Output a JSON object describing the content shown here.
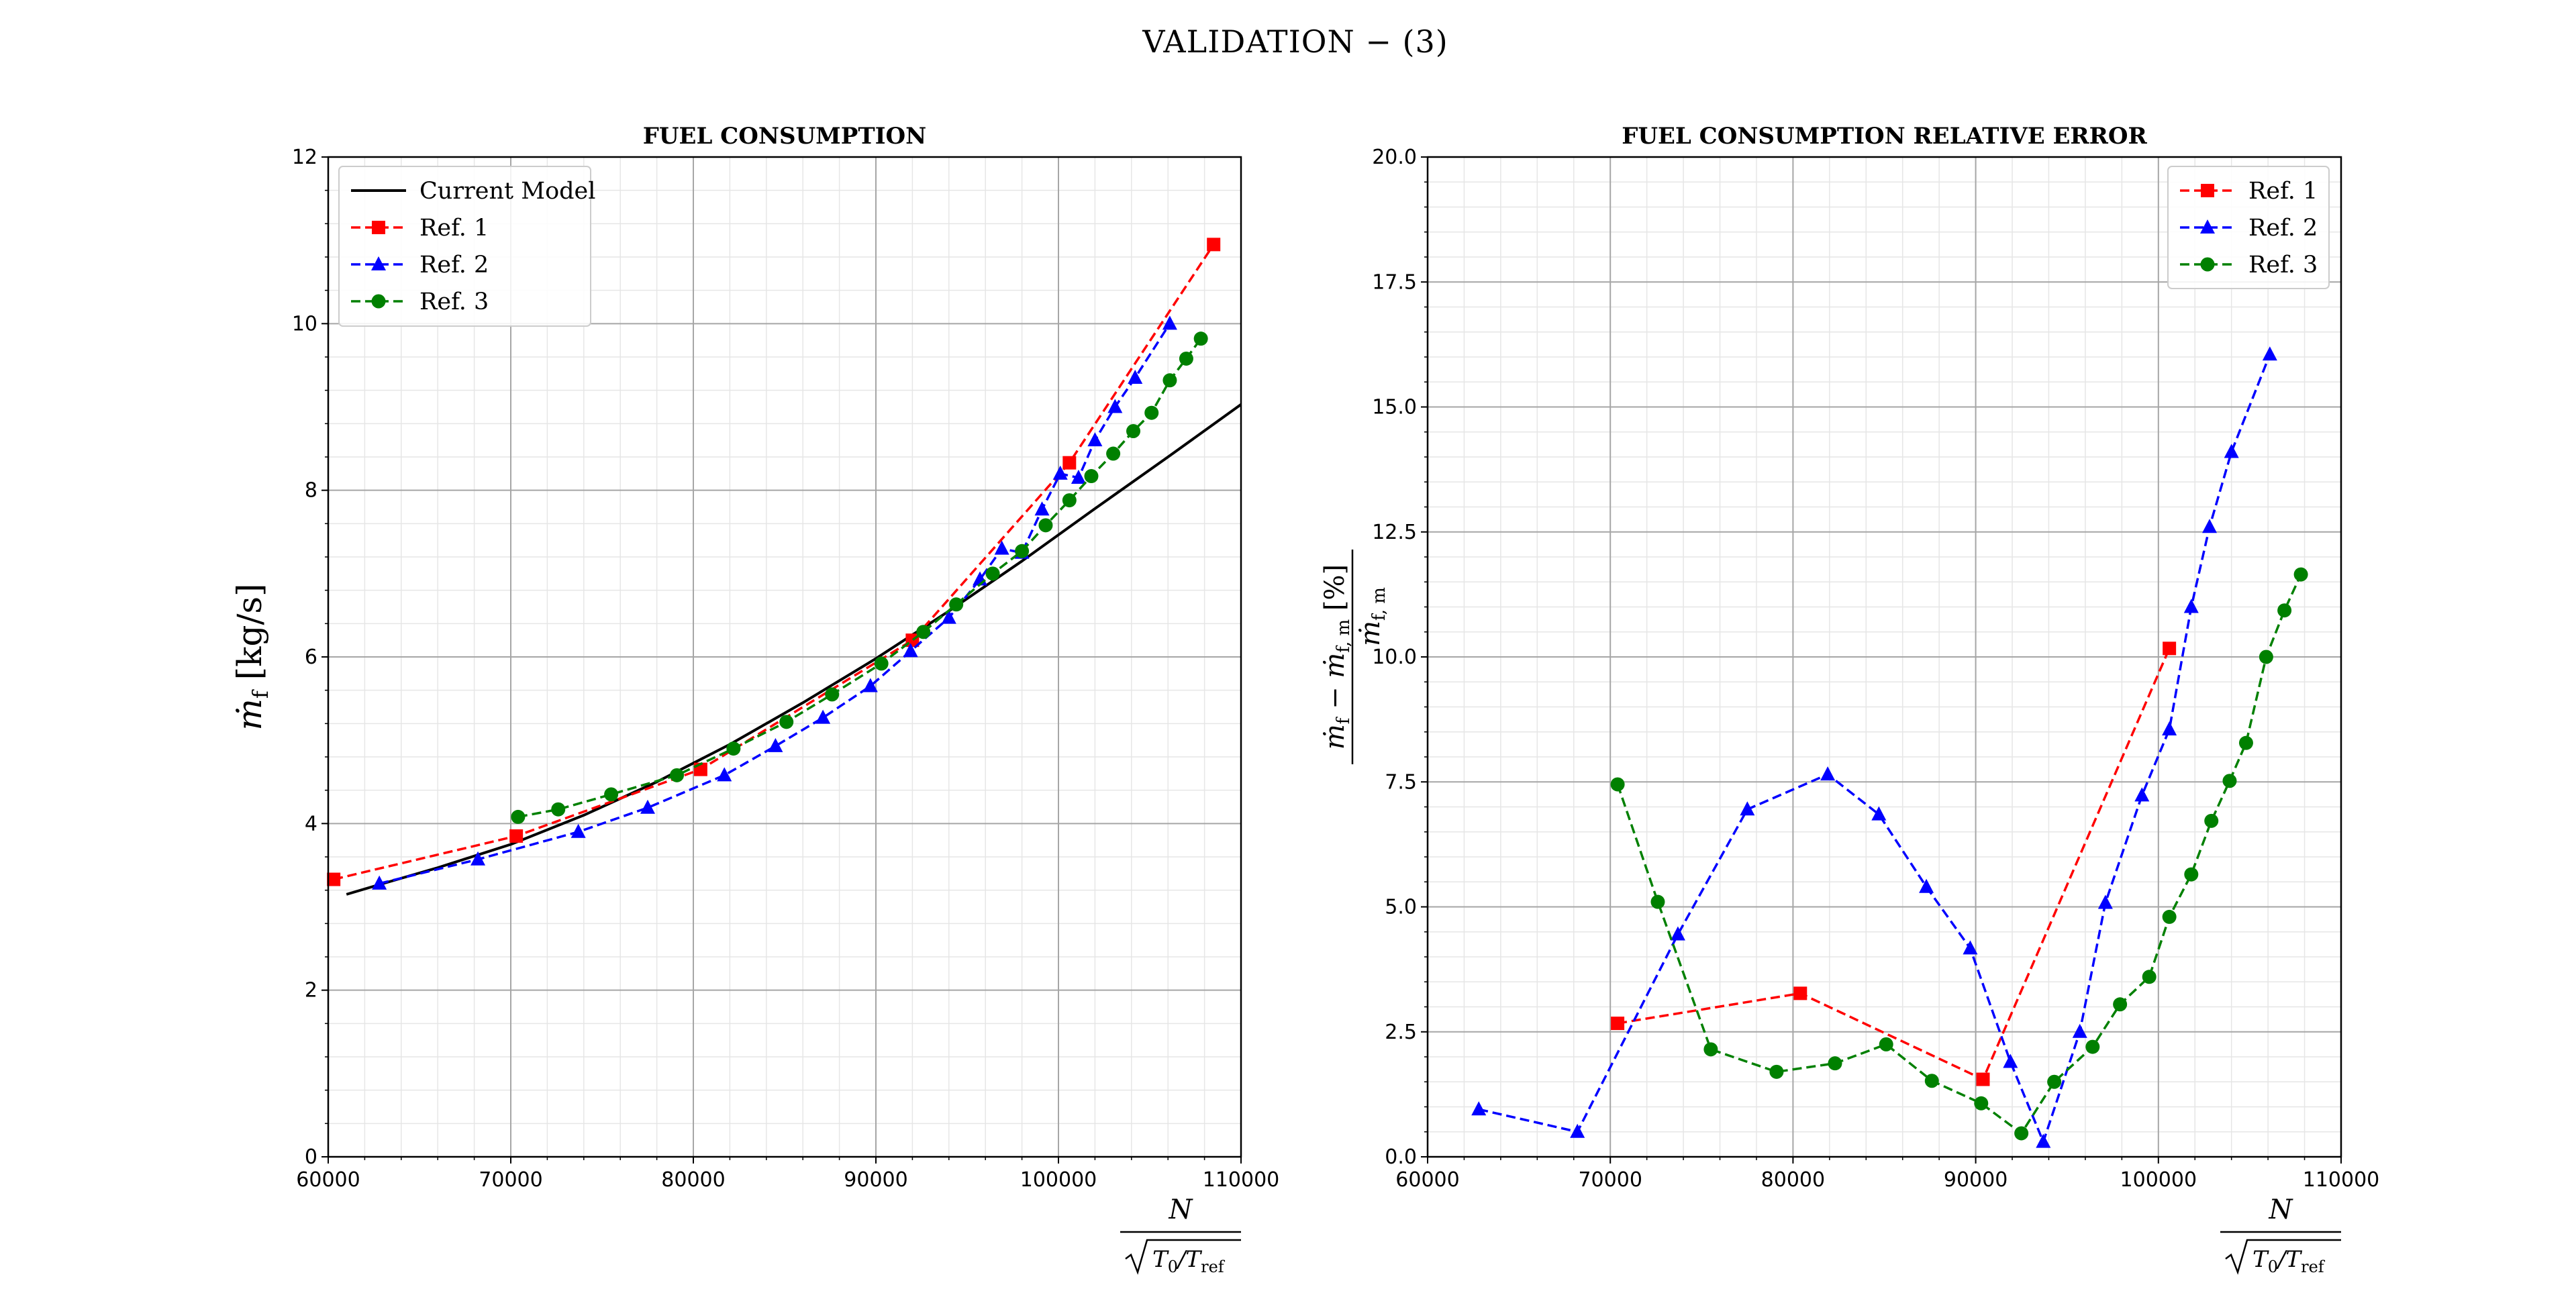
{
  "figure": {
    "suptitle": "VALIDATION  − (3)"
  },
  "colors": {
    "current": "#000000",
    "ref1": "#ff0000",
    "ref2": "#0000ff",
    "ref3": "#008000"
  },
  "chart_data": [
    {
      "type": "line",
      "title": "FUEL CONSUMPTION",
      "xlabel": "N / √(T0/Tref)",
      "ylabel": "ṁf [kg/s]",
      "xlim": [
        60000,
        110000
      ],
      "ylim": [
        0,
        12
      ],
      "xticks": [
        60000,
        70000,
        80000,
        90000,
        100000,
        110000
      ],
      "yticks": [
        0,
        2,
        4,
        6,
        8,
        10,
        12
      ],
      "grid": true,
      "legend_position": "top-left",
      "series": [
        {
          "name": "Current Model",
          "style": "solid",
          "marker": "none",
          "color": "#000000",
          "x": [
            61000,
            63000,
            66000,
            70000,
            74000,
            78000,
            82000,
            86000,
            90000,
            94000,
            98000,
            102000,
            106000,
            110000
          ],
          "y": [
            3.15,
            3.28,
            3.47,
            3.75,
            4.1,
            4.5,
            4.95,
            5.45,
            5.98,
            6.55,
            7.15,
            7.78,
            8.4,
            9.03
          ]
        },
        {
          "name": "Ref. 1",
          "style": "dashed",
          "marker": "square",
          "color": "#ff0000",
          "x": [
            60300,
            70300,
            80400,
            92000,
            100600,
            108500
          ],
          "y": [
            3.33,
            3.85,
            4.65,
            6.2,
            8.33,
            10.95
          ]
        },
        {
          "name": "Ref. 2",
          "style": "dashed",
          "marker": "triangle",
          "color": "#0000ff",
          "x": [
            62800,
            68200,
            73700,
            77500,
            81700,
            84500,
            87100,
            89700,
            91900,
            94000,
            95700,
            96900,
            98000,
            99100,
            100100,
            101100,
            102000,
            103100,
            104200,
            106100
          ],
          "y": [
            3.28,
            3.57,
            3.9,
            4.19,
            4.58,
            4.93,
            5.27,
            5.65,
            6.07,
            6.47,
            6.93,
            7.3,
            7.25,
            7.77,
            8.2,
            8.15,
            8.6,
            9.0,
            9.35,
            10.0
          ]
        },
        {
          "name": "Ref. 3",
          "style": "dashed",
          "marker": "circle",
          "color": "#008000",
          "x": [
            70400,
            72600,
            75500,
            79100,
            82200,
            85100,
            87600,
            90300,
            92600,
            94400,
            96400,
            98000,
            99300,
            100600,
            101800,
            103000,
            104100,
            105100,
            106100,
            107000,
            107800
          ],
          "y": [
            4.08,
            4.17,
            4.35,
            4.58,
            4.9,
            5.22,
            5.55,
            5.92,
            6.3,
            6.63,
            7.0,
            7.27,
            7.58,
            7.88,
            8.17,
            8.44,
            8.71,
            8.93,
            9.32,
            9.58,
            9.82
          ]
        }
      ]
    },
    {
      "type": "line",
      "title": "FUEL CONSUMPTION RELATIVE ERROR",
      "xlabel": "N / √(T0/Tref)",
      "ylabel": "(ṁf − ṁf,m) / ṁf,m [%]",
      "xlim": [
        60000,
        110000
      ],
      "ylim": [
        0,
        20
      ],
      "xticks": [
        60000,
        70000,
        80000,
        90000,
        100000,
        110000
      ],
      "yticks": [
        0.0,
        2.5,
        5.0,
        7.5,
        10.0,
        12.5,
        15.0,
        17.5,
        20.0
      ],
      "grid": true,
      "legend_position": "top-right",
      "series": [
        {
          "name": "Ref. 1",
          "style": "dashed",
          "marker": "square",
          "color": "#ff0000",
          "x": [
            70400,
            80400,
            90400,
            100600
          ],
          "y": [
            2.67,
            3.27,
            1.55,
            10.17
          ]
        },
        {
          "name": "Ref. 2",
          "style": "dashed",
          "marker": "triangle",
          "color": "#0000ff",
          "x": [
            62800,
            68200,
            73700,
            77500,
            81900,
            84700,
            87300,
            89700,
            91900,
            93700,
            95700,
            97100,
            99100,
            100600,
            101800,
            102800,
            104000,
            106100
          ],
          "y": [
            0.95,
            0.5,
            4.45,
            6.95,
            7.65,
            6.85,
            5.4,
            4.17,
            1.9,
            0.3,
            2.5,
            5.08,
            7.23,
            8.55,
            11.0,
            12.6,
            14.1,
            16.05
          ]
        },
        {
          "name": "Ref. 3",
          "style": "dashed",
          "marker": "circle",
          "color": "#008000",
          "x": [
            70400,
            72600,
            75500,
            79100,
            82300,
            85100,
            87600,
            90300,
            92500,
            94300,
            96400,
            97900,
            99500,
            100600,
            101800,
            102900,
            103900,
            104800,
            105900,
            106900,
            107800
          ],
          "y": [
            7.45,
            5.1,
            2.15,
            1.7,
            1.87,
            2.25,
            1.52,
            1.07,
            0.47,
            1.5,
            2.2,
            3.05,
            3.6,
            4.8,
            5.65,
            6.72,
            7.52,
            8.28,
            10.0,
            10.93,
            11.65
          ]
        }
      ]
    }
  ]
}
